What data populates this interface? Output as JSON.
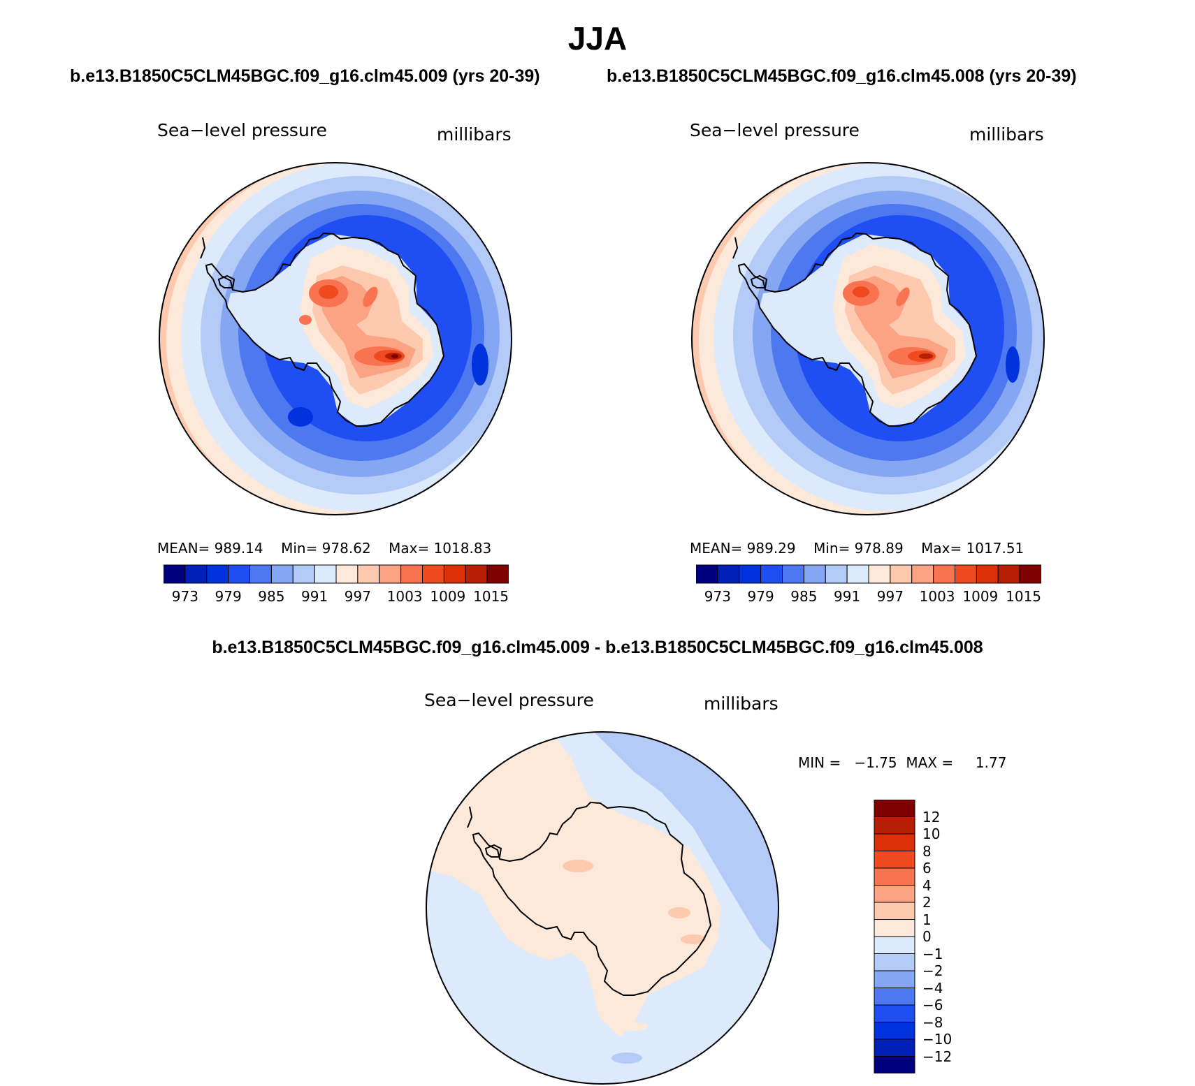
{
  "figure": {
    "title": "JJA"
  },
  "panels": [
    {
      "subtitle": "b.e13.B1850C5CLM45BGC.f09_g16.clm45.009 (yrs 20-39)",
      "variable": "Sea−level pressure",
      "units": "millibars",
      "stats": {
        "mean": "MEAN= 989.14",
        "min": "Min= 978.62",
        "max": "Max= 1018.83"
      },
      "colorbar_ticks": [
        "973",
        "979",
        "985",
        "991",
        "997",
        "1003",
        "1009",
        "1015"
      ]
    },
    {
      "subtitle": "b.e13.B1850C5CLM45BGC.f09_g16.clm45.008 (yrs 20-39)",
      "variable": "Sea−level pressure",
      "units": "millibars",
      "stats": {
        "mean": "MEAN= 989.29",
        "min": "Min= 978.89",
        "max": "Max= 1017.51"
      },
      "colorbar_ticks": [
        "973",
        "979",
        "985",
        "991",
        "997",
        "1003",
        "1009",
        "1015"
      ]
    }
  ],
  "difference": {
    "subtitle": "b.e13.B1850C5CLM45BGC.f09_g16.clm45.009 - b.e13.B1850C5CLM45BGC.f09_g16.clm45.008",
    "variable": "Sea−level pressure",
    "units": "millibars",
    "stats": {
      "min_label": "MIN =",
      "min": "−1.75",
      "max_label": "MAX =",
      "max": "1.77"
    },
    "colorbar_ticks": [
      "12",
      "10",
      "8",
      "6",
      "4",
      "2",
      "1",
      "0",
      "−1",
      "−2",
      "−4",
      "−6",
      "−8",
      "−10",
      "−12"
    ]
  },
  "colors": {
    "slp_levels": [
      "#00007f",
      "#0020b8",
      "#0033dd",
      "#1f4ff2",
      "#4d78f0",
      "#85a6f3",
      "#b4cbf7",
      "#dceafb",
      "#fde9da",
      "#fdcab0",
      "#fba383",
      "#fa7351",
      "#f04a20",
      "#dc3008",
      "#b61f04",
      "#7f0000"
    ],
    "diff_levels": [
      "#7f0000",
      "#b61f04",
      "#dc3008",
      "#f04a20",
      "#fa7351",
      "#fba383",
      "#fdcab0",
      "#fde9da",
      "#dceafb",
      "#b4cbf7",
      "#85a6f3",
      "#4d78f0",
      "#1f4ff2",
      "#0033dd",
      "#0020b8",
      "#00007f"
    ],
    "coastline": "#000000"
  },
  "chart_data": {
    "type": "heatmap",
    "projection": "south polar stereographic",
    "region": "Antarctica / Southern Ocean",
    "season": "JJA",
    "panels": [
      {
        "case": "b.e13.B1850C5CLM45BGC.f09_g16.clm45.009",
        "years": "20-39",
        "mean": 989.14,
        "min": 978.62,
        "max": 1018.83,
        "contour_levels": [
          973,
          976,
          979,
          982,
          985,
          988,
          991,
          994,
          997,
          1000,
          1003,
          1006,
          1009,
          1012,
          1015
        ]
      },
      {
        "case": "b.e13.B1850C5CLM45BGC.f09_g16.clm45.008",
        "years": "20-39",
        "mean": 989.29,
        "min": 978.89,
        "max": 1017.51,
        "contour_levels": [
          973,
          976,
          979,
          982,
          985,
          988,
          991,
          994,
          997,
          1000,
          1003,
          1006,
          1009,
          1012,
          1015
        ]
      },
      {
        "case": "difference (009 - 008)",
        "min": -1.75,
        "max": 1.77,
        "contour_levels": [
          12,
          10,
          8,
          6,
          4,
          2,
          1,
          0,
          -1,
          -2,
          -4,
          -6,
          -8,
          -10,
          -12
        ]
      }
    ]
  }
}
